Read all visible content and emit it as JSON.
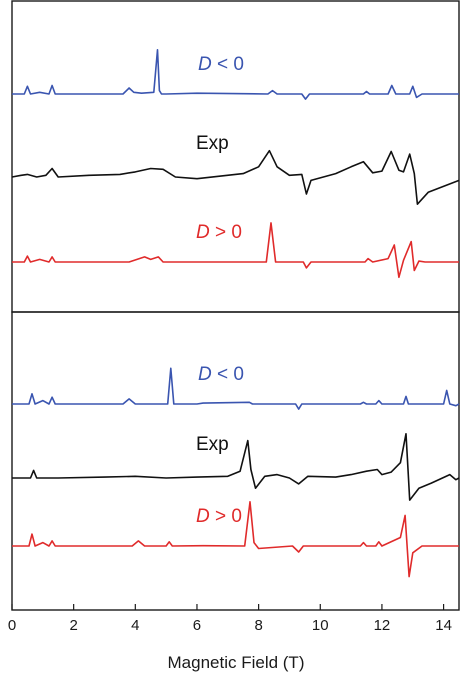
{
  "chart_data": {
    "type": "line",
    "xlabel": "Magnetic Field (T)",
    "xlim": [
      0,
      14.5
    ],
    "xticks": [
      0,
      2,
      4,
      6,
      8,
      10,
      12,
      14
    ],
    "colors": {
      "blue": "#3a55b0",
      "black": "#111111",
      "red": "#e02b2b"
    },
    "panels": [
      {
        "series": [
          {
            "name": "D < 0",
            "label_prefix": "D",
            "label_suffix": " < 0",
            "color": "blue",
            "baseline": 0.62,
            "x": [
              0,
              0.4,
              0.5,
              0.6,
              0.9,
              1.2,
              1.3,
              1.4,
              3.6,
              3.8,
              3.95,
              4.2,
              4.6,
              4.72,
              4.78,
              4.85,
              5.0,
              6.0,
              8.3,
              8.45,
              8.6,
              9.4,
              9.52,
              9.65,
              11.4,
              11.5,
              11.6,
              12.2,
              12.32,
              12.45,
              12.9,
              13.0,
              13.12,
              13.3,
              14.5
            ],
            "y": [
              0,
              0,
              0.45,
              0,
              0.1,
              0,
              0.5,
              0,
              0,
              0.35,
              0.1,
              0.05,
              0.1,
              2.6,
              0.2,
              0,
              0,
              0.05,
              0,
              0.2,
              0,
              0,
              -0.3,
              0,
              0,
              0.15,
              0,
              0,
              0.5,
              0,
              0,
              0.45,
              -0.2,
              0,
              0
            ]
          },
          {
            "name": "Exp",
            "label_prefix": "",
            "label_suffix": "Exp",
            "color": "black",
            "baseline": 1.9,
            "x": [
              0,
              0.3,
              0.5,
              0.8,
              1.1,
              1.3,
              1.5,
              2.5,
              3.5,
              4.0,
              4.5,
              4.9,
              5.3,
              6.0,
              7.5,
              8.0,
              8.35,
              8.6,
              9.0,
              9.4,
              9.55,
              9.7,
              10.5,
              11.0,
              11.4,
              11.7,
              12.0,
              12.3,
              12.55,
              12.7,
              12.9,
              13.05,
              13.15,
              13.5,
              14.5
            ],
            "y": [
              0,
              0.1,
              0.15,
              0.0,
              0.1,
              0.5,
              0.0,
              0.1,
              0.15,
              0.3,
              0.5,
              0.45,
              0.0,
              -0.1,
              0.2,
              0.6,
              1.55,
              0.6,
              0.1,
              0.15,
              -1.0,
              -0.2,
              0.2,
              0.6,
              0.9,
              0.25,
              0.35,
              1.5,
              0.4,
              0.3,
              1.35,
              0.2,
              -1.6,
              -0.9,
              -0.2
            ]
          },
          {
            "name": "D > 0",
            "label_prefix": "D",
            "label_suffix": " > 0",
            "color": "red",
            "baseline": 3.05,
            "x": [
              0,
              0.4,
              0.5,
              0.6,
              0.9,
              1.2,
              1.3,
              1.4,
              3.8,
              4.3,
              4.5,
              4.75,
              4.9,
              8.25,
              8.4,
              8.55,
              9.45,
              9.55,
              9.7,
              11.45,
              11.55,
              11.7,
              12.2,
              12.4,
              12.55,
              12.7,
              12.95,
              13.05,
              13.2,
              13.4,
              14.5
            ],
            "y": [
              0,
              0,
              0.35,
              0,
              0.15,
              0,
              0.3,
              0,
              0,
              0.3,
              0.15,
              0.3,
              0,
              0,
              2.3,
              0,
              0,
              -0.35,
              0,
              0,
              0.2,
              0,
              0.2,
              1.0,
              -0.9,
              0.1,
              1.2,
              -0.5,
              0.05,
              0,
              0
            ]
          }
        ]
      },
      {
        "series": [
          {
            "name": "D < 0",
            "label_prefix": "D",
            "label_suffix": " < 0",
            "color": "blue",
            "baseline": 0.62,
            "x": [
              0,
              0.55,
              0.65,
              0.75,
              1.0,
              1.2,
              1.3,
              1.4,
              3.6,
              3.8,
              4.0,
              5.05,
              5.15,
              5.25,
              6.0,
              6.2,
              7.7,
              7.8,
              9.2,
              9.3,
              9.4,
              11.3,
              11.4,
              11.5,
              11.8,
              11.9,
              12.0,
              12.7,
              12.78,
              12.86,
              14.0,
              14.1,
              14.2,
              14.4,
              14.5
            ],
            "y": [
              0,
              0,
              0.6,
              0,
              0.2,
              0,
              0.4,
              0,
              0,
              0.3,
              0,
              0,
              2.1,
              0,
              0,
              0.05,
              0.1,
              0,
              0,
              -0.3,
              0,
              0,
              0.1,
              0,
              0,
              0.2,
              0,
              0,
              0.45,
              0,
              0,
              0.8,
              0,
              -0.1,
              0
            ]
          },
          {
            "name": "Exp",
            "label_prefix": "",
            "label_suffix": "Exp",
            "color": "black",
            "baseline": 1.9,
            "x": [
              0,
              0.6,
              0.7,
              0.8,
              1.5,
              3.0,
              4.0,
              5.0,
              6.0,
              7.0,
              7.4,
              7.65,
              7.75,
              7.9,
              8.2,
              8.6,
              9.0,
              9.3,
              9.6,
              10.5,
              11.0,
              11.5,
              11.85,
              12.0,
              12.3,
              12.6,
              12.78,
              12.85,
              12.9,
              13.2,
              13.6,
              14.2,
              14.4,
              14.5
            ],
            "y": [
              0,
              0,
              0.45,
              0,
              0.0,
              0.05,
              0.1,
              0.0,
              0.05,
              0.1,
              0.4,
              2.2,
              0.5,
              -0.6,
              0.1,
              0.2,
              0.0,
              -0.35,
              0.1,
              0.05,
              0.2,
              0.4,
              0.5,
              0.2,
              0.35,
              0.9,
              2.6,
              0.4,
              -1.3,
              -0.6,
              -0.3,
              0.2,
              -0.1,
              0.0
            ]
          },
          {
            "name": "D > 0",
            "label_prefix": "D",
            "label_suffix": " > 0",
            "color": "red",
            "baseline": 3.05,
            "x": [
              0,
              0.55,
              0.65,
              0.75,
              1.0,
              1.2,
              1.3,
              1.4,
              3.9,
              4.1,
              4.3,
              5.0,
              5.1,
              5.2,
              6.2,
              7.55,
              7.72,
              7.85,
              8.0,
              9.1,
              9.3,
              9.45,
              11.3,
              11.4,
              11.5,
              11.8,
              11.9,
              12.0,
              12.6,
              12.75,
              12.88,
              13.0,
              13.3,
              14.5
            ],
            "y": [
              0,
              0,
              0.7,
              0,
              0.2,
              0,
              0.3,
              0,
              0,
              0.3,
              0,
              0,
              0.25,
              0,
              0.02,
              0,
              2.6,
              0.2,
              -0.15,
              0,
              -0.35,
              0,
              0,
              0.2,
              0,
              0,
              0.25,
              0,
              0.5,
              1.8,
              -1.8,
              -0.4,
              0,
              0
            ]
          }
        ]
      }
    ],
    "ylim": [
      -0.7,
      4.15
    ]
  }
}
